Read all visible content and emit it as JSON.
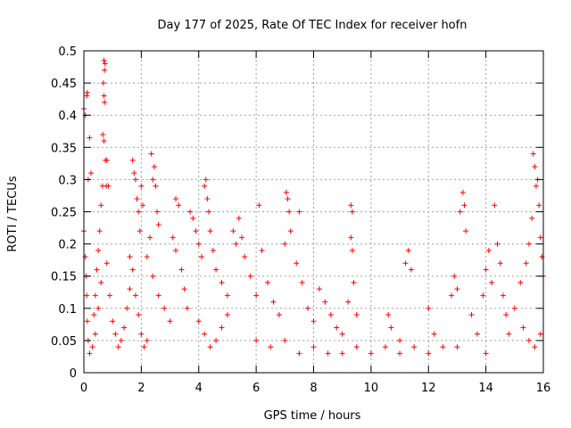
{
  "chart_data": {
    "type": "scatter",
    "title": "Day 177 of 2025, Rate Of TEC Index for receiver hofn",
    "xlabel": "GPS time / hours",
    "ylabel": "ROTI / TECUs",
    "xlim": [
      0,
      16
    ],
    "ylim": [
      0,
      0.5
    ],
    "xticks": [
      0,
      2,
      4,
      6,
      8,
      10,
      12,
      14,
      16
    ],
    "yticks": [
      0,
      0.05,
      0.1,
      0.15,
      0.2,
      0.25,
      0.3,
      0.35,
      0.4,
      0.45,
      0.5
    ],
    "grid": true,
    "marker": "+",
    "color": "#ff0000",
    "series": [
      {
        "values": [
          [
            0.0,
            0.41
          ],
          [
            0.05,
            0.4
          ],
          [
            0.1,
            0.43
          ],
          [
            0.12,
            0.435
          ],
          [
            0.2,
            0.365
          ],
          [
            0.15,
            0.3
          ],
          [
            0.25,
            0.31
          ],
          [
            0.0,
            0.22
          ],
          [
            0.05,
            0.18
          ],
          [
            0.08,
            0.15
          ],
          [
            0.1,
            0.12
          ],
          [
            0.12,
            0.08
          ],
          [
            0.15,
            0.05
          ],
          [
            0.2,
            0.03
          ],
          [
            0.3,
            0.04
          ],
          [
            0.35,
            0.09
          ],
          [
            0.4,
            0.12
          ],
          [
            0.45,
            0.16
          ],
          [
            0.5,
            0.19
          ],
          [
            0.55,
            0.22
          ],
          [
            0.6,
            0.26
          ],
          [
            0.65,
            0.29
          ],
          [
            0.7,
            0.485
          ],
          [
            0.72,
            0.47
          ],
          [
            0.74,
            0.48
          ],
          [
            0.68,
            0.45
          ],
          [
            0.7,
            0.43
          ],
          [
            0.72,
            0.42
          ],
          [
            0.66,
            0.37
          ],
          [
            0.7,
            0.36
          ],
          [
            0.75,
            0.33
          ],
          [
            0.8,
            0.33
          ],
          [
            0.78,
            0.29
          ],
          [
            0.85,
            0.29
          ],
          [
            0.4,
            0.06
          ],
          [
            0.5,
            0.1
          ],
          [
            0.6,
            0.14
          ],
          [
            0.8,
            0.17
          ],
          [
            0.9,
            0.12
          ],
          [
            1.0,
            0.08
          ],
          [
            1.1,
            0.06
          ],
          [
            1.2,
            0.04
          ],
          [
            1.3,
            0.05
          ],
          [
            1.4,
            0.07
          ],
          [
            1.5,
            0.1
          ],
          [
            1.6,
            0.13
          ],
          [
            1.7,
            0.33
          ],
          [
            1.75,
            0.31
          ],
          [
            1.8,
            0.3
          ],
          [
            1.85,
            0.27
          ],
          [
            1.9,
            0.25
          ],
          [
            1.95,
            0.22
          ],
          [
            2.0,
            0.29
          ],
          [
            2.05,
            0.26
          ],
          [
            1.6,
            0.18
          ],
          [
            1.7,
            0.16
          ],
          [
            1.8,
            0.12
          ],
          [
            1.9,
            0.09
          ],
          [
            2.0,
            0.06
          ],
          [
            2.1,
            0.04
          ],
          [
            2.2,
            0.05
          ],
          [
            2.3,
            0.21
          ],
          [
            2.35,
            0.34
          ],
          [
            2.4,
            0.3
          ],
          [
            2.45,
            0.32
          ],
          [
            2.5,
            0.29
          ],
          [
            2.55,
            0.25
          ],
          [
            2.6,
            0.23
          ],
          [
            2.2,
            0.18
          ],
          [
            2.4,
            0.15
          ],
          [
            2.6,
            0.12
          ],
          [
            2.8,
            0.1
          ],
          [
            3.0,
            0.08
          ],
          [
            3.2,
            0.27
          ],
          [
            3.3,
            0.26
          ],
          [
            3.1,
            0.21
          ],
          [
            3.2,
            0.19
          ],
          [
            3.4,
            0.16
          ],
          [
            3.5,
            0.13
          ],
          [
            3.6,
            0.1
          ],
          [
            3.7,
            0.25
          ],
          [
            3.8,
            0.24
          ],
          [
            3.9,
            0.22
          ],
          [
            4.0,
            0.2
          ],
          [
            4.1,
            0.18
          ],
          [
            4.2,
            0.29
          ],
          [
            4.25,
            0.3
          ],
          [
            4.3,
            0.27
          ],
          [
            4.35,
            0.25
          ],
          [
            4.4,
            0.22
          ],
          [
            4.5,
            0.19
          ],
          [
            4.6,
            0.16
          ],
          [
            4.8,
            0.14
          ],
          [
            5.0,
            0.12
          ],
          [
            4.0,
            0.08
          ],
          [
            4.2,
            0.06
          ],
          [
            4.4,
            0.04
          ],
          [
            4.6,
            0.05
          ],
          [
            4.8,
            0.07
          ],
          [
            5.0,
            0.09
          ],
          [
            5.2,
            0.22
          ],
          [
            5.3,
            0.2
          ],
          [
            5.4,
            0.24
          ],
          [
            5.5,
            0.21
          ],
          [
            5.6,
            0.18
          ],
          [
            5.8,
            0.15
          ],
          [
            6.0,
            0.12
          ],
          [
            6.1,
            0.26
          ],
          [
            6.2,
            0.19
          ],
          [
            6.4,
            0.14
          ],
          [
            6.6,
            0.11
          ],
          [
            6.8,
            0.09
          ],
          [
            7.0,
            0.2
          ],
          [
            7.05,
            0.28
          ],
          [
            7.1,
            0.27
          ],
          [
            7.15,
            0.25
          ],
          [
            7.2,
            0.22
          ],
          [
            7.4,
            0.17
          ],
          [
            7.5,
            0.25
          ],
          [
            7.6,
            0.14
          ],
          [
            7.8,
            0.1
          ],
          [
            8.0,
            0.08
          ],
          [
            8.2,
            0.13
          ],
          [
            8.4,
            0.11
          ],
          [
            8.6,
            0.09
          ],
          [
            8.8,
            0.07
          ],
          [
            9.0,
            0.06
          ],
          [
            9.2,
            0.11
          ],
          [
            9.3,
            0.26
          ],
          [
            9.35,
            0.25
          ],
          [
            9.3,
            0.21
          ],
          [
            9.35,
            0.19
          ],
          [
            9.4,
            0.14
          ],
          [
            9.5,
            0.09
          ],
          [
            6.0,
            0.05
          ],
          [
            6.5,
            0.04
          ],
          [
            7.0,
            0.05
          ],
          [
            7.5,
            0.03
          ],
          [
            8.0,
            0.04
          ],
          [
            8.5,
            0.03
          ],
          [
            9.0,
            0.03
          ],
          [
            9.5,
            0.04
          ],
          [
            10.0,
            0.03
          ],
          [
            10.5,
            0.04
          ],
          [
            10.6,
            0.09
          ],
          [
            10.7,
            0.07
          ],
          [
            11.0,
            0.05
          ],
          [
            11.2,
            0.17
          ],
          [
            11.3,
            0.19
          ],
          [
            11.4,
            0.16
          ],
          [
            11.5,
            0.04
          ],
          [
            12.0,
            0.1
          ],
          [
            12.2,
            0.06
          ],
          [
            12.5,
            0.04
          ],
          [
            12.8,
            0.12
          ],
          [
            12.9,
            0.15
          ],
          [
            13.0,
            0.13
          ],
          [
            13.1,
            0.25
          ],
          [
            13.2,
            0.28
          ],
          [
            13.25,
            0.26
          ],
          [
            13.3,
            0.22
          ],
          [
            13.5,
            0.09
          ],
          [
            13.7,
            0.06
          ],
          [
            13.9,
            0.12
          ],
          [
            14.0,
            0.16
          ],
          [
            14.1,
            0.19
          ],
          [
            14.2,
            0.14
          ],
          [
            14.3,
            0.26
          ],
          [
            14.4,
            0.2
          ],
          [
            14.5,
            0.17
          ],
          [
            14.6,
            0.12
          ],
          [
            14.7,
            0.09
          ],
          [
            14.8,
            0.06
          ],
          [
            15.0,
            0.1
          ],
          [
            15.2,
            0.14
          ],
          [
            15.4,
            0.17
          ],
          [
            15.5,
            0.2
          ],
          [
            15.6,
            0.24
          ],
          [
            15.65,
            0.34
          ],
          [
            15.7,
            0.32
          ],
          [
            15.75,
            0.29
          ],
          [
            15.8,
            0.3
          ],
          [
            15.85,
            0.26
          ],
          [
            15.9,
            0.21
          ],
          [
            15.95,
            0.18
          ],
          [
            16.0,
            0.15
          ],
          [
            15.3,
            0.07
          ],
          [
            15.5,
            0.05
          ],
          [
            15.7,
            0.04
          ],
          [
            15.9,
            0.06
          ],
          [
            14.0,
            0.03
          ],
          [
            13.0,
            0.04
          ],
          [
            12.0,
            0.03
          ],
          [
            11.0,
            0.03
          ]
        ]
      }
    ]
  }
}
